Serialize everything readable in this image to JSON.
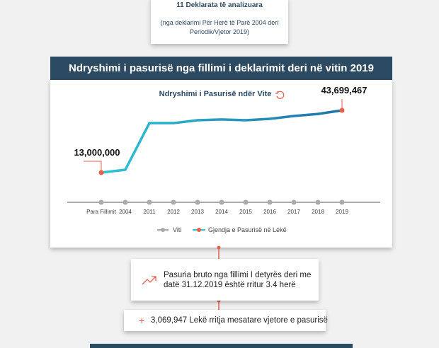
{
  "header": {
    "title": "11 Deklarata të analizuara",
    "subtitle": "(nga deklarimi Për Herë të Parë 2004 deri Periodik/Vjetor 2019)"
  },
  "section_title": "Ndryshimi i pasurisë nga fillimi i deklarimit deri në vitin 2019",
  "chart_data": {
    "type": "line",
    "title": "Ndryshimi i Pasurisë ndër Vite",
    "categories": [
      "Para Fillimit",
      "2004",
      "2011",
      "2012",
      "2013",
      "2014",
      "2015",
      "2016",
      "2017",
      "2018",
      "2019"
    ],
    "axis_legend": {
      "name": "Viti",
      "color": "#aaaaaa"
    },
    "series": [
      {
        "name": "Gjendja e Pasurisë në Lekë",
        "color": "#2ec4d6",
        "marker_color": "#e8604c",
        "values": [
          13000000,
          14400000,
          37400000,
          37400000,
          38800000,
          39200000,
          38800000,
          39500000,
          40900000,
          41900000,
          43699467
        ],
        "value_labels": [
          "13,000,000",
          null,
          null,
          null,
          null,
          null,
          null,
          null,
          null,
          null,
          "43,699,467"
        ]
      }
    ]
  },
  "facts": [
    "Pasuria bruto nga fillimi I detyrës deri me datë 31.12.2019 është rritur 3.4 herë",
    "3,069,947 Lekë rritja mesatare vjetore e pasurisë"
  ]
}
